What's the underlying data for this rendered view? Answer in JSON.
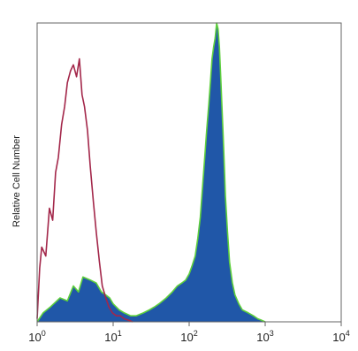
{
  "chart_data": {
    "type": "area",
    "title": "",
    "ylabel": "Relative Cell Number",
    "xlabel": "",
    "x_scale": "log",
    "xlim": [
      1,
      10000
    ],
    "ylim": [
      0,
      100
    ],
    "grid": false,
    "legend": "none",
    "x_ticks": [
      {
        "value": 1,
        "base": "10",
        "exp": "0"
      },
      {
        "value": 10,
        "base": "10",
        "exp": "1"
      },
      {
        "value": 100,
        "base": "10",
        "exp": "2"
      },
      {
        "value": 1000,
        "base": "10",
        "exp": "3"
      },
      {
        "value": 10000,
        "base": "10",
        "exp": "4"
      }
    ],
    "series": [
      {
        "role": "isotype-control",
        "style": "outline",
        "color": "#a3274a",
        "x": [
          1.0,
          1.08,
          1.15,
          1.3,
          1.45,
          1.6,
          1.75,
          1.9,
          2.1,
          2.3,
          2.5,
          2.75,
          3.0,
          3.3,
          3.6,
          3.9,
          4.2,
          4.6,
          5.0,
          5.5,
          6.0,
          6.6,
          7.2,
          8.0,
          8.8,
          9.8,
          11,
          12.5,
          14,
          16,
          18
        ],
        "y": [
          1,
          18,
          25,
          22,
          38,
          34,
          50,
          55,
          66,
          72,
          80,
          84,
          86,
          82,
          88,
          76,
          72,
          64,
          52,
          40,
          30,
          20,
          12,
          8,
          5,
          3,
          2,
          2,
          1,
          0.5,
          0
        ]
      },
      {
        "role": "stained-sample",
        "style": "filled",
        "fill_color": "#2057a8",
        "edge_color": "#5ecf3d",
        "x": [
          1.0,
          1.2,
          1.5,
          2.0,
          2.5,
          3.0,
          3.5,
          4.0,
          5.0,
          6.0,
          7.0,
          8.0,
          9.0,
          10,
          12,
          14,
          17,
          20,
          25,
          30,
          35,
          40,
          50,
          60,
          70,
          80,
          90,
          100,
          110,
          120,
          130,
          140,
          150,
          160,
          170,
          180,
          190,
          200,
          210,
          220,
          230,
          240,
          250,
          260,
          270,
          280,
          290,
          300,
          320,
          340,
          370,
          400,
          450,
          500,
          600,
          700,
          800,
          900,
          1000
        ],
        "y": [
          0,
          3,
          5,
          8,
          7,
          12,
          10,
          15,
          14,
          13,
          10,
          9,
          8,
          6,
          4,
          3,
          2,
          2,
          3,
          4,
          5,
          6,
          8,
          10,
          12,
          13,
          14,
          16,
          19,
          22,
          28,
          35,
          45,
          55,
          64,
          72,
          80,
          88,
          92,
          95,
          100,
          98,
          92,
          82,
          72,
          62,
          52,
          42,
          30,
          20,
          13,
          9,
          6,
          4,
          3,
          2,
          1,
          0.5,
          0
        ]
      }
    ]
  }
}
